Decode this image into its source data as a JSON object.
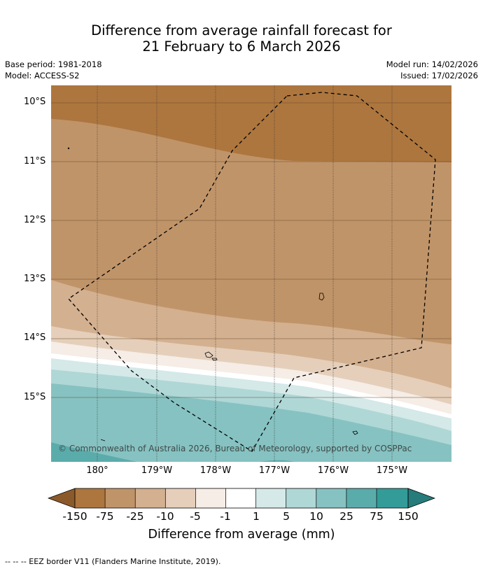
{
  "title": {
    "line1": "Difference from average rainfall forecast for",
    "line2": "21 February to 6 March 2026"
  },
  "meta": {
    "base_period": "Base period: 1981-2018",
    "model": "Model: ACCESS-S2",
    "model_run": "Model run: 14/02/2026",
    "issued": "Issued: 17/02/2026"
  },
  "map": {
    "lat_labels": [
      "10°S",
      "11°S",
      "12°S",
      "13°S",
      "14°S",
      "15°S"
    ],
    "lon_labels": [
      "180°",
      "179°W",
      "178°W",
      "177°W",
      "176°W",
      "175°W"
    ],
    "copyright": "© Commonwealth of Australia 2026, Bureau of Meteorology, supported by COSPPac"
  },
  "colorbar": {
    "labels": [
      "-150",
      "-75",
      "-25",
      "-10",
      "-5",
      "-1",
      "1",
      "5",
      "10",
      "25",
      "75",
      "150"
    ],
    "colors": [
      "#8b5a2b",
      "#ad763e",
      "#c09469",
      "#d3b08f",
      "#e5cfbb",
      "#f5ede6",
      "#ffffff",
      "#d4e9e8",
      "#afd7d6",
      "#86c2c1",
      "#5aacab",
      "#339c99",
      "#257c7a"
    ],
    "title": "Difference from average (mm)"
  },
  "footer": "--  --  -- EEZ border V11 (Flanders Marine Institute, 2019)."
}
